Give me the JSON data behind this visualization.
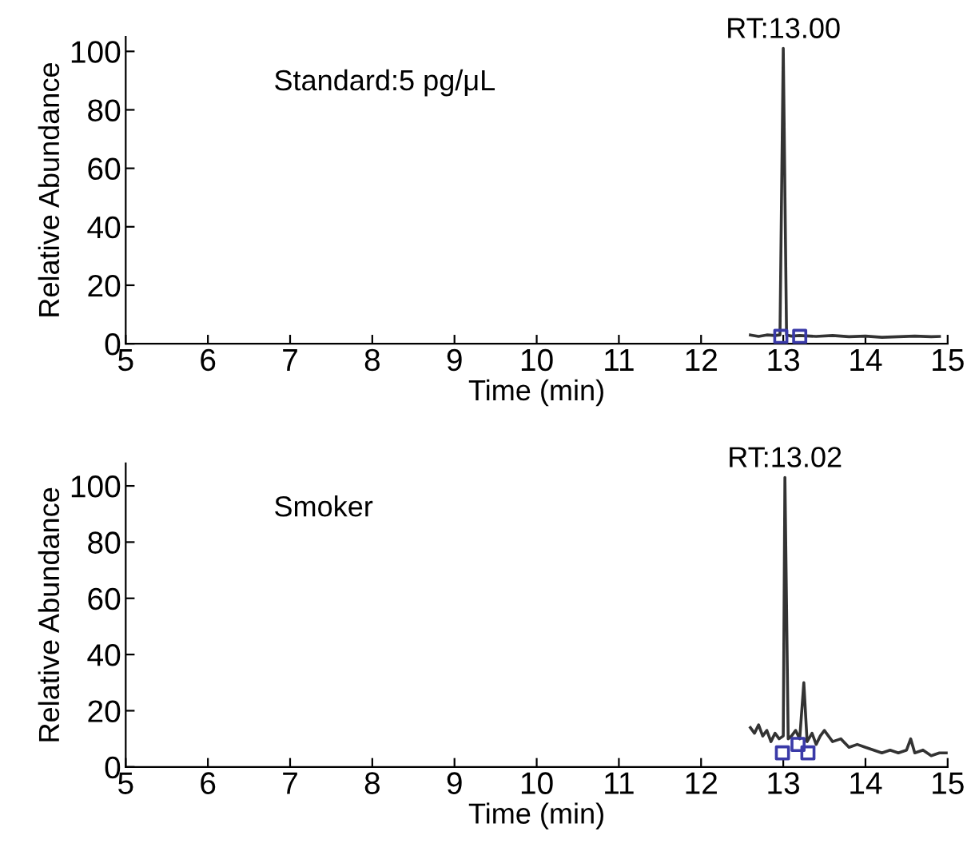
{
  "chart_data": [
    {
      "type": "line",
      "xlabel": "Time (min)",
      "ylabel": "Relative Abundance",
      "xlim": [
        5,
        15
      ],
      "ylim": [
        0,
        105
      ],
      "xticks": [
        5,
        6,
        7,
        8,
        9,
        10,
        11,
        12,
        13,
        14,
        15
      ],
      "yticks": [
        0,
        20,
        40,
        60,
        80,
        100
      ],
      "grid": false,
      "legend": false,
      "annotations": [
        {
          "text": "RT:13.00",
          "x": 13.0,
          "y": 101
        },
        "Standard:5 pg/μL"
      ],
      "series": [
        {
          "color": "#333333",
          "x": [
            12.6,
            12.7,
            12.8,
            12.9,
            12.96,
            13.0,
            13.04,
            13.1,
            13.2,
            13.4,
            13.6,
            13.8,
            14.0,
            14.2,
            14.4,
            14.6,
            14.8,
            14.9
          ],
          "values": [
            3,
            2.5,
            3,
            2.8,
            3,
            101,
            3,
            2.6,
            2.8,
            2.5,
            2.8,
            2.4,
            2.6,
            2.2,
            2.4,
            2.6,
            2.4,
            2.5
          ]
        },
        {
          "type": "scatter",
          "marker": "square",
          "color": "#3a3aa8",
          "x": [
            12.97,
            13.2
          ],
          "values": [
            2.5,
            2.5
          ]
        }
      ]
    },
    {
      "type": "line",
      "xlabel": "Time (min)",
      "ylabel": "Relative Abundance",
      "xlim": [
        5,
        15
      ],
      "ylim": [
        0,
        108
      ],
      "xticks": [
        5,
        6,
        7,
        8,
        9,
        10,
        11,
        12,
        13,
        14,
        15
      ],
      "yticks": [
        0,
        20,
        40,
        60,
        80,
        100
      ],
      "grid": false,
      "legend": false,
      "annotations": [
        {
          "text": "RT:13.02",
          "x": 13.02,
          "y": 103
        },
        "Smoker"
      ],
      "series": [
        {
          "color": "#333333",
          "x": [
            12.6,
            12.65,
            12.7,
            12.75,
            12.8,
            12.85,
            12.9,
            12.95,
            13.0,
            13.02,
            13.06,
            13.1,
            13.15,
            13.2,
            13.25,
            13.29,
            13.35,
            13.4,
            13.45,
            13.5,
            13.6,
            13.7,
            13.8,
            13.9,
            14.0,
            14.1,
            14.2,
            14.3,
            14.4,
            14.5,
            14.55,
            14.6,
            14.7,
            14.8,
            14.9,
            15.0
          ],
          "values": [
            14,
            12,
            15,
            11,
            13,
            9,
            12,
            10,
            11,
            103,
            10,
            11,
            13,
            10,
            30,
            9,
            12,
            8,
            11,
            13,
            9,
            10,
            7,
            8,
            7,
            6,
            5,
            6,
            5,
            6,
            10,
            5,
            6,
            4,
            5,
            5
          ]
        },
        {
          "type": "scatter",
          "marker": "square",
          "color": "#3a3aa8",
          "x": [
            12.99,
            13.18,
            13.3
          ],
          "values": [
            5,
            8,
            5
          ]
        }
      ]
    }
  ]
}
